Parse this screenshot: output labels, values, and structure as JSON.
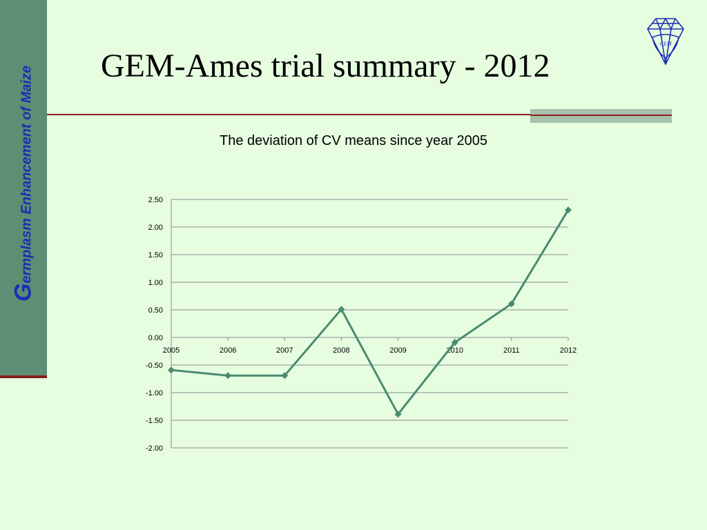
{
  "slide": {
    "title": "GEM-Ames trial summary - 2012",
    "sidebar_initial": "G",
    "sidebar_rest": "ermplasm Enhancement of Maize",
    "logo_icon": "gem-diamond-logo-icon",
    "logo_text": "GEM"
  },
  "colors": {
    "background": "#e6fde0",
    "sidebar": "#5e8e73",
    "accent_red": "#8a1e1e",
    "sidebar_text": "#1a2fb3",
    "series_line": "#4a8a70"
  },
  "chart_data": {
    "type": "line",
    "title": "The deviation of CV means since year 2005",
    "xlabel": "",
    "ylabel": "",
    "x": [
      "2005",
      "2006",
      "2007",
      "2008",
      "2009",
      "2010",
      "2011",
      "2012"
    ],
    "series": [
      {
        "values": [
          -0.59,
          -0.69,
          -0.69,
          0.51,
          -1.39,
          -0.09,
          0.61,
          2.31
        ]
      }
    ],
    "ylim": [
      -2.0,
      2.5
    ],
    "yticks": [
      "2.50",
      "2.00",
      "1.50",
      "1.00",
      "0.50",
      "0.00",
      "-0.50",
      "-1.00",
      "-1.50",
      "-2.00"
    ],
    "grid": true,
    "marker": "diamond",
    "legend": "none"
  }
}
